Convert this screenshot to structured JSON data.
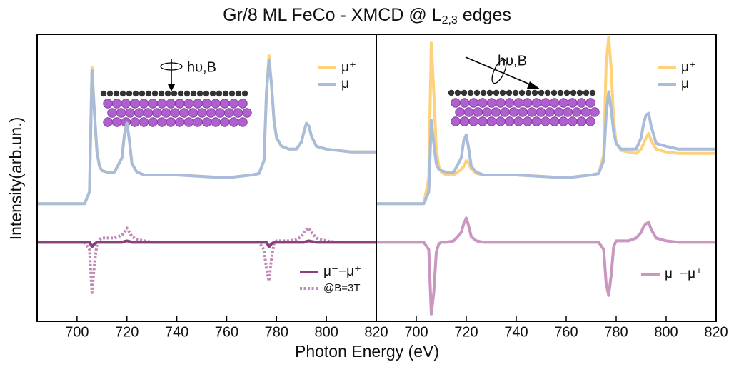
{
  "title": [
    "Gr/8 ML FeCo - XMCD @ L",
    "2,3",
    " edges"
  ],
  "xlabel": "Photon Energy (eV)",
  "ylabel": "Intensity(arb.un.)",
  "chart_data": [
    {
      "type": "line",
      "annotation": "hυ,B",
      "x": [
        684,
        695,
        700,
        703,
        705,
        706,
        707,
        708,
        709,
        710,
        712,
        715,
        718,
        719,
        720,
        721,
        722,
        724,
        727,
        730,
        740,
        750,
        760,
        765,
        770,
        773,
        775,
        776,
        777,
        778,
        779,
        780,
        782,
        785,
        788,
        790,
        791,
        792,
        793,
        794,
        796,
        800,
        805,
        810,
        815,
        820
      ],
      "xlim": [
        684,
        820
      ],
      "xticks": [
        700,
        720,
        740,
        760,
        780,
        800,
        820
      ],
      "ylim": [
        0,
        100
      ],
      "series": [
        {
          "name": "μ⁺",
          "color": "#fdd27a",
          "dash": "solid",
          "legend": "upper right",
          "values": [
            41,
            41,
            41,
            41,
            45,
            88.5,
            72.5,
            59,
            54,
            52.5,
            52,
            52,
            57,
            65,
            69,
            63,
            55,
            52,
            51,
            51,
            51,
            50.5,
            50,
            50.5,
            51,
            51.5,
            56,
            80,
            92.5,
            82.5,
            70,
            64,
            61,
            60,
            60,
            62.5,
            66,
            69,
            68,
            64.5,
            61,
            60,
            59.5,
            59,
            59,
            59
          ]
        },
        {
          "name": "μ⁻",
          "color": "#a9bcd9",
          "dash": "solid",
          "legend": "upper right",
          "values": [
            41,
            41,
            41,
            41,
            45,
            87.5,
            72.5,
            59,
            54,
            52.5,
            52,
            52,
            57,
            65,
            69,
            63,
            55,
            52,
            51,
            51,
            51,
            50.5,
            50,
            50.5,
            51,
            51.5,
            56,
            80,
            91,
            82.5,
            70,
            64,
            61,
            60,
            60,
            62.5,
            66,
            69,
            68,
            64.5,
            61,
            60,
            59.5,
            59,
            59,
            59
          ]
        },
        {
          "name": "@B=3T",
          "color": "#c08ab6",
          "dash": "dotted",
          "legend": "lower right",
          "values": [
            27.5,
            27.5,
            27.5,
            27.5,
            25,
            10,
            20,
            27,
            28.5,
            29,
            29,
            29,
            30,
            31,
            32.5,
            31,
            29.5,
            28.5,
            28,
            27.5,
            27.5,
            27.5,
            27.5,
            27.5,
            27.5,
            27.5,
            25,
            18,
            14,
            22,
            27,
            28,
            28,
            28,
            28.5,
            29.5,
            31,
            32,
            32.5,
            31,
            29,
            28,
            27.5,
            27.5,
            27.5,
            27.5
          ]
        },
        {
          "name": "μ⁻−μ⁺",
          "color": "#8b3f7f",
          "dash": "solid",
          "legend": "lower right",
          "values": [
            27.5,
            27.5,
            27.5,
            27.5,
            27.5,
            26,
            27,
            27.5,
            27.5,
            27.5,
            27.5,
            27.5,
            27.5,
            27.8,
            28,
            27.8,
            27.5,
            27.5,
            27.5,
            27.5,
            27.5,
            27.5,
            27.5,
            27.5,
            27.5,
            27.5,
            27.5,
            27.5,
            26,
            27,
            27.5,
            27.5,
            27.5,
            27.5,
            27.5,
            27.5,
            27.5,
            27.8,
            28,
            27.8,
            27.5,
            27.5,
            27.5,
            27.5,
            27.5,
            27.5
          ]
        }
      ]
    },
    {
      "type": "line",
      "annotation": "hυ,B",
      "x": [
        684,
        695,
        700,
        703,
        705,
        706,
        707,
        708,
        709,
        710,
        712,
        715,
        718,
        719,
        720,
        721,
        722,
        724,
        727,
        730,
        740,
        750,
        760,
        765,
        770,
        773,
        775,
        776,
        777,
        778,
        779,
        780,
        782,
        785,
        788,
        790,
        791,
        792,
        793,
        794,
        796,
        800,
        805,
        810,
        815,
        820
      ],
      "xlim": [
        684,
        820
      ],
      "xticks": [
        700,
        720,
        740,
        760,
        780,
        800,
        820
      ],
      "ylim": [
        0,
        100
      ],
      "series": [
        {
          "name": "μ⁺",
          "color": "#fdd27a",
          "dash": "solid",
          "legend": "upper right",
          "values": [
            41,
            41,
            41,
            41,
            50,
            97,
            80,
            60,
            54,
            52,
            51,
            51,
            53,
            54,
            56,
            55,
            53,
            51.5,
            51,
            51,
            51,
            50.5,
            50,
            50.5,
            51,
            51.5,
            58,
            90,
            99,
            88,
            70,
            62,
            59.5,
            59,
            58.5,
            60,
            62,
            64,
            65.5,
            63,
            60,
            59,
            58.5,
            58.5,
            58.5,
            58.5
          ]
        },
        {
          "name": "μ⁻",
          "color": "#a9bcd9",
          "dash": "solid",
          "legend": "upper right",
          "values": [
            41,
            41,
            41,
            41,
            45,
            70,
            62,
            55,
            53,
            52.5,
            52,
            52,
            57,
            63,
            65,
            60,
            54,
            52,
            51,
            51,
            51,
            50.5,
            50,
            50.5,
            51,
            51.5,
            56,
            72,
            80,
            74,
            66,
            62,
            60,
            60,
            60,
            64,
            69,
            72,
            72.5,
            68,
            62,
            61,
            60,
            60,
            60,
            60
          ]
        },
        {
          "name": "μ⁻−μ⁺",
          "color": "#c997bf",
          "dash": "solid",
          "legend": "lower right",
          "values": [
            27.5,
            27.5,
            27.5,
            27.5,
            25,
            2.5,
            10,
            24,
            27,
            27.5,
            27.5,
            28,
            31,
            34,
            36,
            33,
            29.5,
            28,
            27.5,
            27.5,
            27.5,
            27.5,
            27.5,
            27.5,
            27.5,
            27.5,
            25,
            13,
            9,
            16,
            26,
            28,
            28,
            28,
            29,
            31,
            33,
            34,
            34.5,
            32,
            29,
            28,
            27.5,
            27.5,
            27.5,
            27.5
          ]
        }
      ]
    }
  ]
}
